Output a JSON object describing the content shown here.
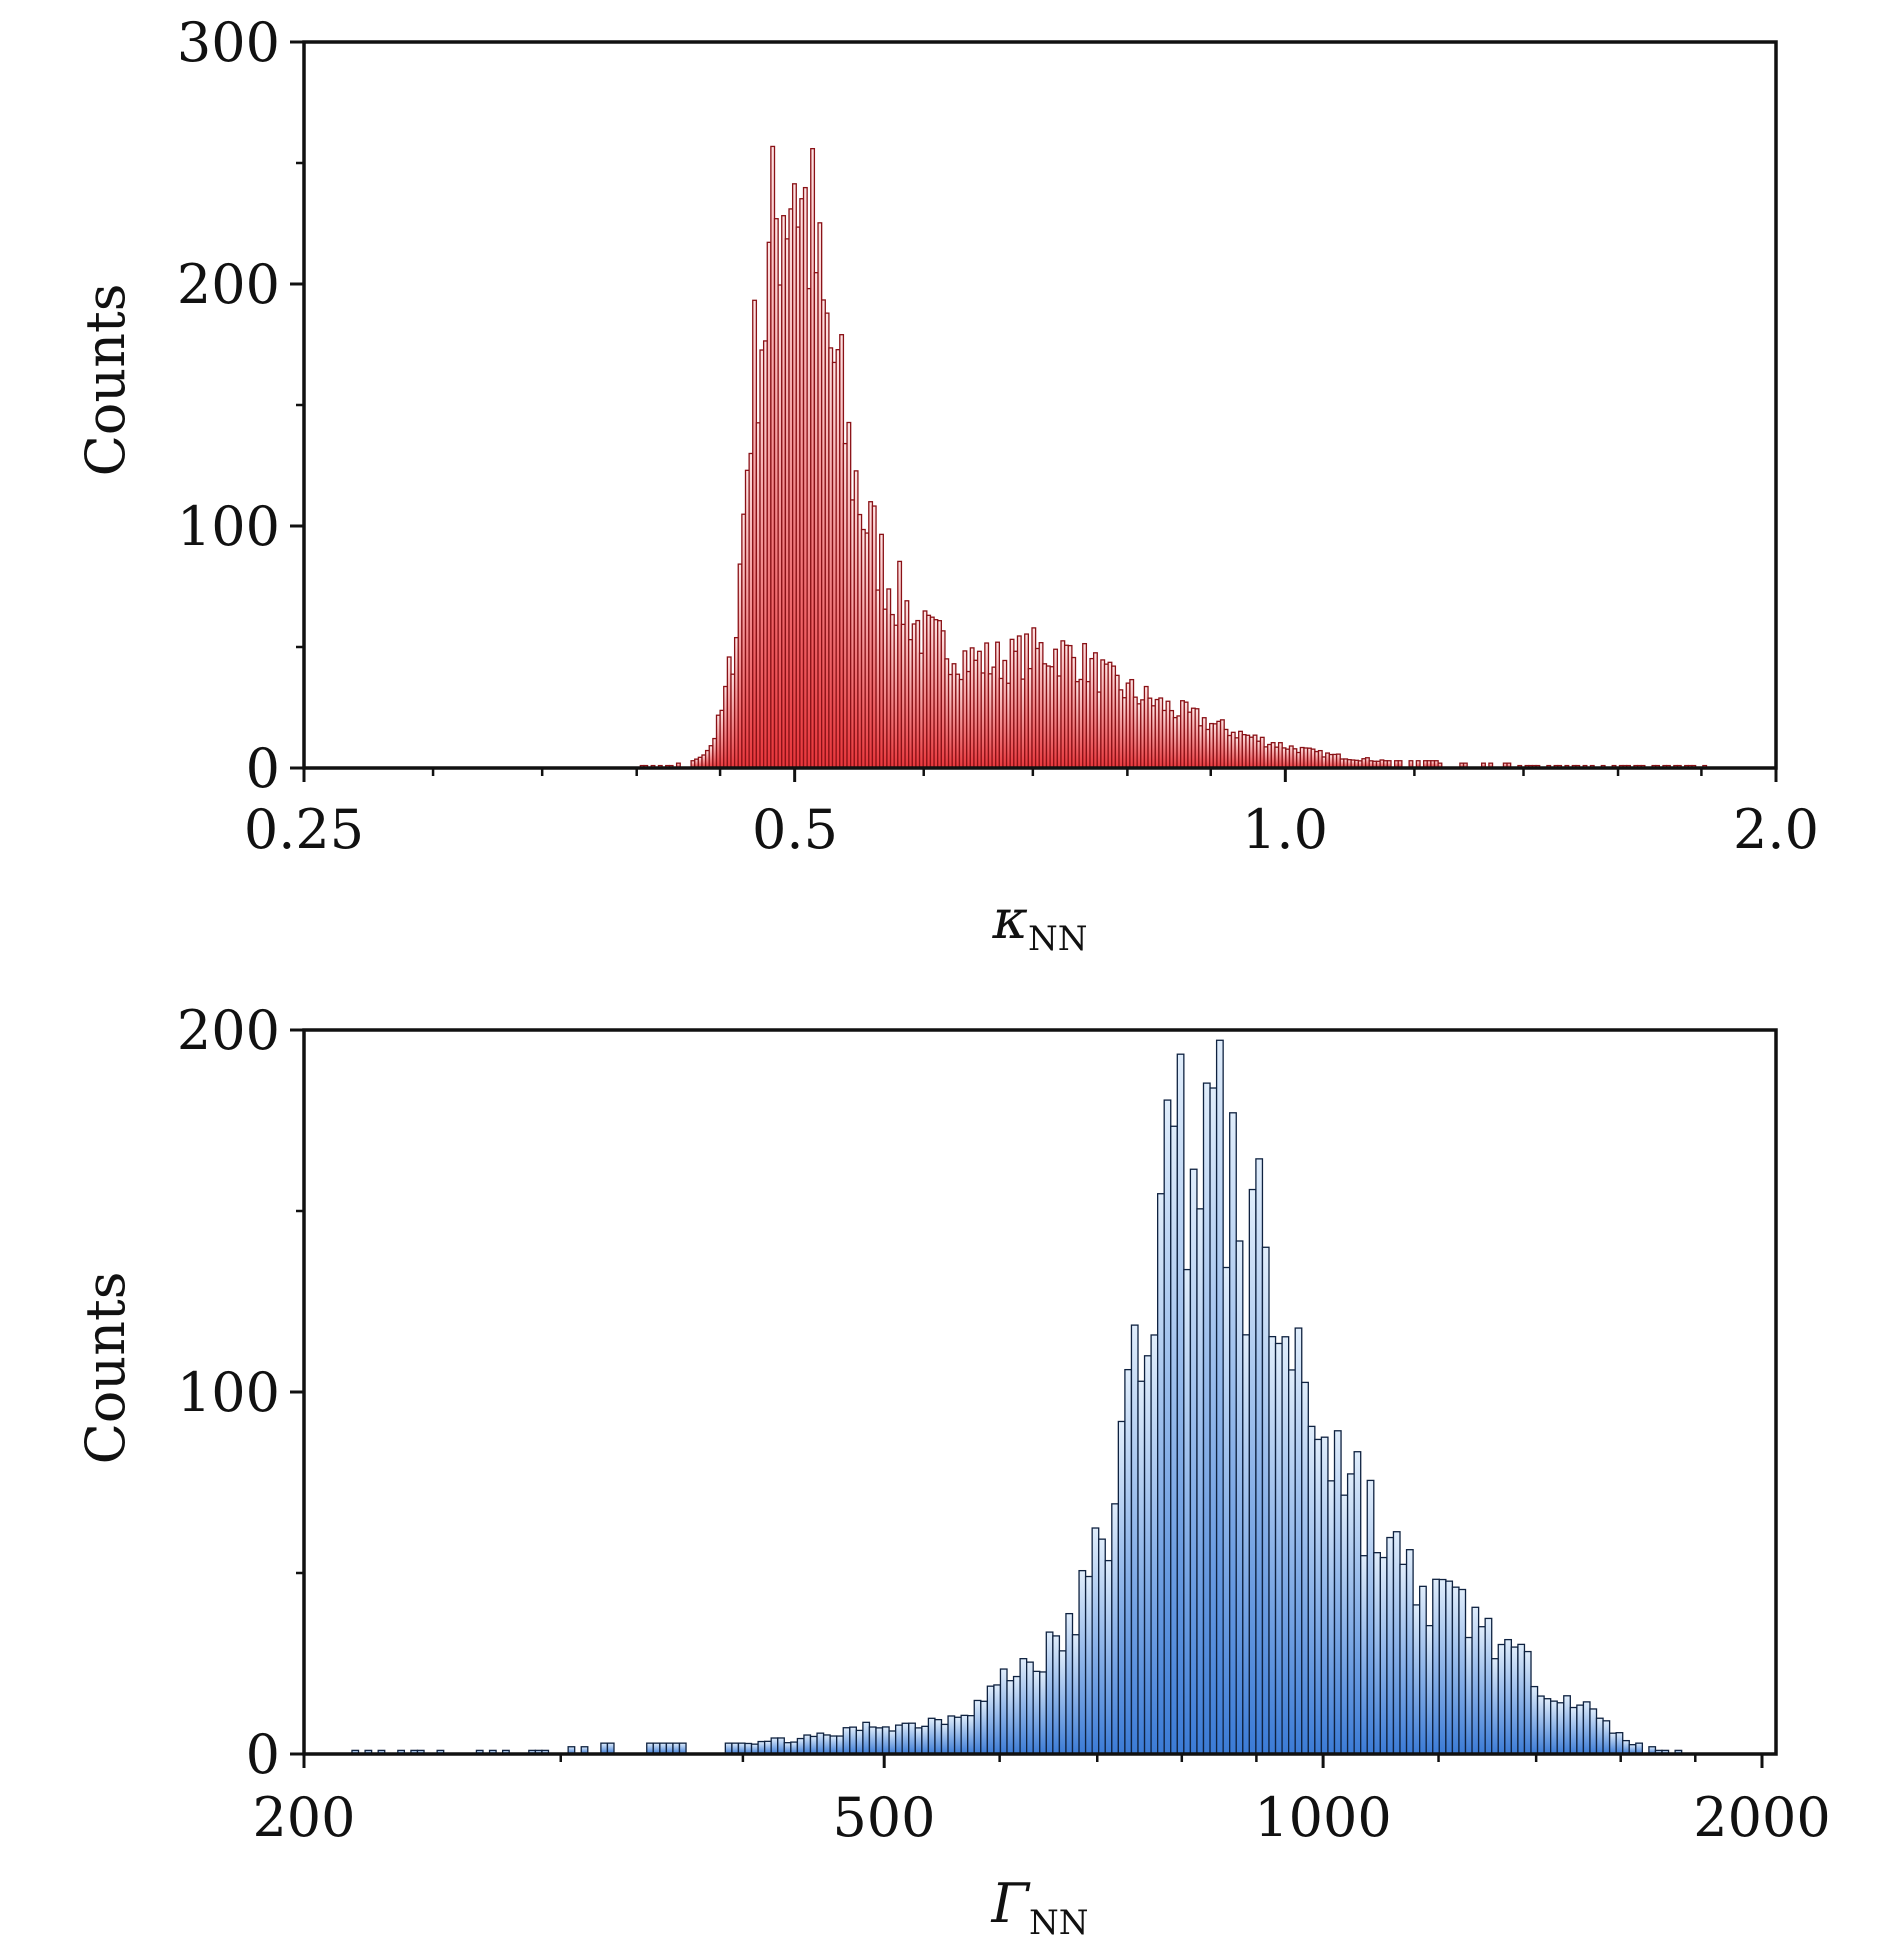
{
  "chart_data": [
    {
      "type": "bar",
      "id": "kappa",
      "xscale": "log",
      "xlim": [
        0.25,
        2.0
      ],
      "ylim": [
        0,
        300
      ],
      "xticks": [
        {
          "value": 0.25,
          "label": "0.25"
        },
        {
          "value": 0.5,
          "label": "0.5"
        },
        {
          "value": 1.0,
          "label": "1.0"
        },
        {
          "value": 2.0,
          "label": "2.0"
        }
      ],
      "yticks": [
        {
          "value": 0,
          "label": "0"
        },
        {
          "value": 100,
          "label": "100"
        },
        {
          "value": 200,
          "label": "200"
        },
        {
          "value": 300,
          "label": "300"
        }
      ],
      "ylabel": "Counts",
      "xlabel_main": "κ",
      "xlabel_sub": "NN",
      "bar_range": [
        0.4,
        1.86
      ],
      "anchors": [
        [
          0.4,
          0
        ],
        [
          0.42,
          1
        ],
        [
          0.435,
          3
        ],
        [
          0.445,
          10
        ],
        [
          0.452,
          25
        ],
        [
          0.46,
          55
        ],
        [
          0.465,
          102
        ],
        [
          0.47,
          150
        ],
        [
          0.475,
          178
        ],
        [
          0.48,
          190
        ],
        [
          0.485,
          218
        ],
        [
          0.49,
          235
        ],
        [
          0.495,
          242
        ],
        [
          0.5,
          250
        ],
        [
          0.505,
          232
        ],
        [
          0.51,
          225
        ],
        [
          0.515,
          211
        ],
        [
          0.52,
          184
        ],
        [
          0.53,
          165
        ],
        [
          0.54,
          130
        ],
        [
          0.55,
          108
        ],
        [
          0.56,
          92
        ],
        [
          0.57,
          78
        ],
        [
          0.58,
          70
        ],
        [
          0.59,
          62
        ],
        [
          0.6,
          55
        ],
        [
          0.62,
          50
        ],
        [
          0.64,
          45
        ],
        [
          0.66,
          44
        ],
        [
          0.68,
          45
        ],
        [
          0.7,
          48
        ],
        [
          0.72,
          48
        ],
        [
          0.74,
          46
        ],
        [
          0.76,
          42
        ],
        [
          0.78,
          36
        ],
        [
          0.8,
          32
        ],
        [
          0.84,
          26
        ],
        [
          0.88,
          21
        ],
        [
          0.92,
          16
        ],
        [
          0.96,
          12
        ],
        [
          1.0,
          9
        ],
        [
          1.05,
          6
        ],
        [
          1.1,
          4
        ],
        [
          1.15,
          3
        ],
        [
          1.25,
          2
        ],
        [
          1.4,
          1
        ],
        [
          1.6,
          0.6
        ],
        [
          1.86,
          0
        ]
      ],
      "fill_top": "#fde4e4",
      "fill_bottom": "#e8373c",
      "edge": "#8a1116"
    },
    {
      "type": "bar",
      "id": "gamma",
      "xscale": "log",
      "xlim": [
        200,
        2000
      ],
      "ylim": [
        0,
        200
      ],
      "xticks": [
        {
          "value": 200,
          "label": "200"
        },
        {
          "value": 500,
          "label": "500"
        },
        {
          "value": 1000,
          "label": "1000"
        },
        {
          "value": 2000,
          "label": "2000"
        }
      ],
      "yticks": [
        {
          "value": 0,
          "label": "0"
        },
        {
          "value": 100,
          "label": "100"
        },
        {
          "value": 200,
          "label": "200"
        }
      ],
      "ylabel": "Counts",
      "xlabel_main": "Γ",
      "xlabel_sub": "NN",
      "bar_range": [
        207,
        1780
      ],
      "anchors": [
        [
          207,
          1
        ],
        [
          250,
          1
        ],
        [
          300,
          1
        ],
        [
          330,
          3
        ],
        [
          370,
          3
        ],
        [
          400,
          3
        ],
        [
          430,
          4
        ],
        [
          460,
          5
        ],
        [
          490,
          8
        ],
        [
          520,
          8
        ],
        [
          550,
          10
        ],
        [
          580,
          14
        ],
        [
          610,
          22
        ],
        [
          640,
          27
        ],
        [
          660,
          30
        ],
        [
          680,
          40
        ],
        [
          700,
          55
        ],
        [
          720,
          70
        ],
        [
          740,
          100
        ],
        [
          760,
          130
        ],
        [
          780,
          158
        ],
        [
          800,
          170
        ],
        [
          820,
          172
        ],
        [
          840,
          168
        ],
        [
          860,
          160
        ],
        [
          880,
          145
        ],
        [
          900,
          138
        ],
        [
          920,
          125
        ],
        [
          950,
          112
        ],
        [
          980,
          100
        ],
        [
          1000,
          92
        ],
        [
          1050,
          75
        ],
        [
          1100,
          58
        ],
        [
          1150,
          47
        ],
        [
          1200,
          42
        ],
        [
          1250,
          40
        ],
        [
          1300,
          34
        ],
        [
          1350,
          27
        ],
        [
          1400,
          21
        ],
        [
          1450,
          18
        ],
        [
          1500,
          14
        ],
        [
          1550,
          9
        ],
        [
          1600,
          5
        ],
        [
          1650,
          2
        ],
        [
          1700,
          1
        ],
        [
          1780,
          0
        ]
      ],
      "fill_top": "#e0edfb",
      "fill_bottom": "#3b7bd6",
      "edge": "#0f2240"
    }
  ]
}
